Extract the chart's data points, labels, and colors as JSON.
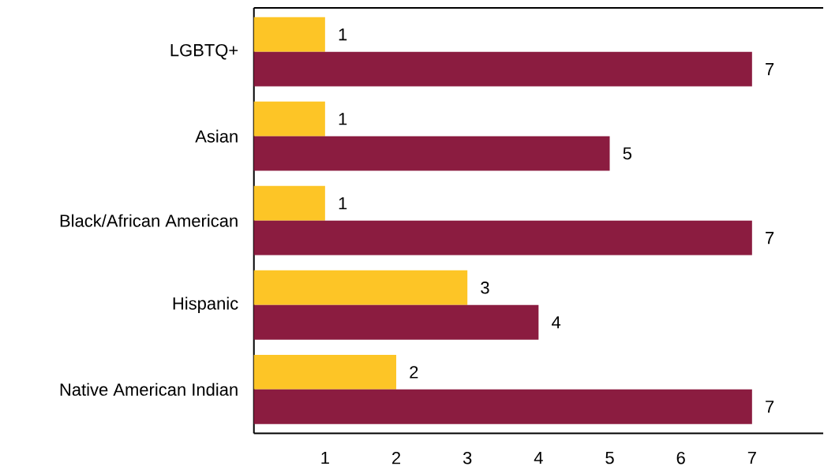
{
  "chart_data": {
    "type": "bar",
    "orientation": "horizontal",
    "categories": [
      "LGBTQ+",
      "Asian",
      "Black/African American",
      "Hispanic",
      "Native American Indian"
    ],
    "series": [
      {
        "color": "#fdc526",
        "values": [
          1,
          1,
          1,
          3,
          2
        ]
      },
      {
        "color": "#8b1c40",
        "values": [
          7,
          5,
          7,
          4,
          7
        ]
      }
    ],
    "xlim": [
      0,
      8
    ],
    "xticks": [
      1,
      2,
      3,
      4,
      5,
      6,
      7
    ],
    "data_labels": true
  }
}
